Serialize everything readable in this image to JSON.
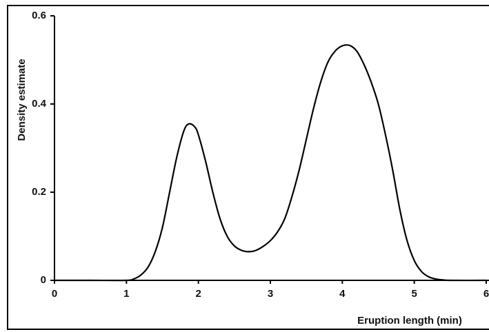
{
  "chart_data": {
    "type": "line",
    "xlabel": "Eruption length (min)",
    "ylabel": "Density estimate",
    "x": [
      0,
      0.5,
      1.0,
      1.1,
      1.2,
      1.3,
      1.4,
      1.5,
      1.6,
      1.7,
      1.8,
      1.87,
      1.95,
      2.0,
      2.1,
      2.2,
      2.3,
      2.4,
      2.5,
      2.6,
      2.7,
      2.8,
      2.9,
      3.0,
      3.1,
      3.2,
      3.3,
      3.4,
      3.5,
      3.6,
      3.7,
      3.8,
      3.9,
      4.0,
      4.1,
      4.2,
      4.3,
      4.4,
      4.5,
      4.6,
      4.7,
      4.8,
      4.9,
      5.0,
      5.1,
      5.2,
      5.3,
      5.4,
      5.5,
      6.0
    ],
    "values": [
      0,
      0,
      0,
      0.003,
      0.012,
      0.03,
      0.065,
      0.12,
      0.2,
      0.28,
      0.34,
      0.355,
      0.348,
      0.33,
      0.27,
      0.2,
      0.14,
      0.1,
      0.078,
      0.068,
      0.065,
      0.068,
      0.077,
      0.09,
      0.11,
      0.14,
      0.19,
      0.25,
      0.32,
      0.39,
      0.45,
      0.495,
      0.52,
      0.532,
      0.533,
      0.52,
      0.49,
      0.45,
      0.4,
      0.33,
      0.25,
      0.16,
      0.09,
      0.045,
      0.02,
      0.008,
      0.003,
      0.001,
      0,
      0
    ],
    "color": "#000000",
    "xlim": [
      0,
      6
    ],
    "xticks": [
      0,
      1,
      2,
      3,
      4,
      5,
      6
    ],
    "ylim": [
      0,
      0.6
    ],
    "yticks": [
      0,
      0.2,
      0.4,
      0.6
    ]
  }
}
